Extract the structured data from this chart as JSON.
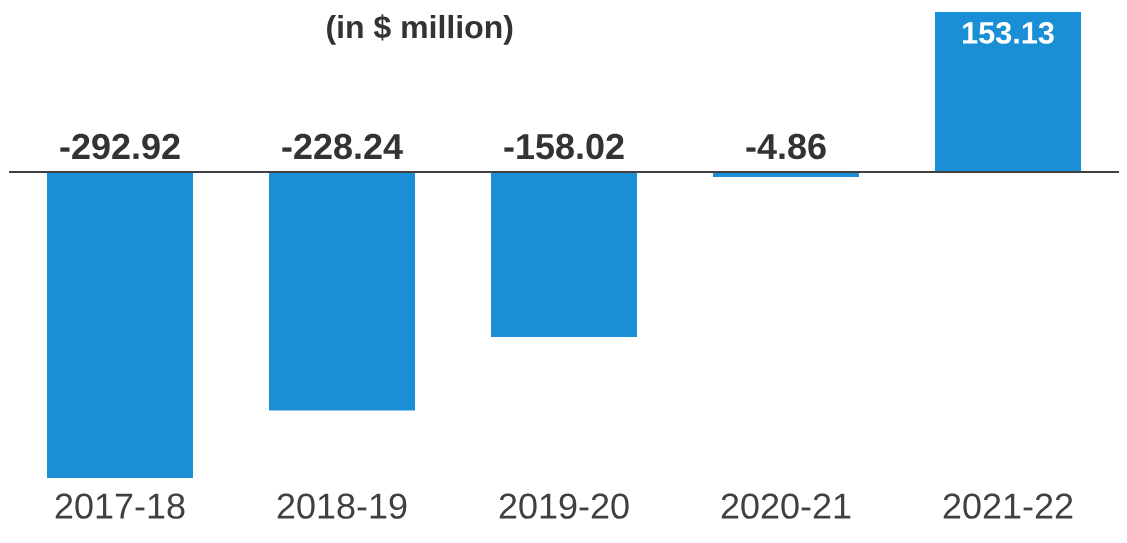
{
  "chart_data": {
    "type": "bar",
    "title": "(in $ million)",
    "categories": [
      "2017-18",
      "2018-19",
      "2019-20",
      "2020-21",
      "2021-22"
    ],
    "values": [
      -292.92,
      -228.24,
      -158.02,
      -4.86,
      153.13
    ],
    "color": "#1a8fd6",
    "data_labels": true
  }
}
